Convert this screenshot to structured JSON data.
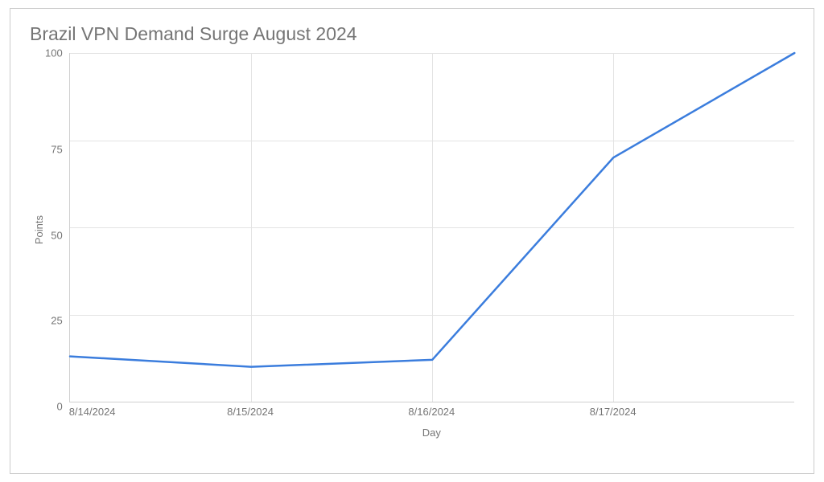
{
  "chart": {
    "type": "line",
    "title": "Brazil VPN Demand Surge August 2024",
    "title_fontsize": 23,
    "title_color": "#757575",
    "xlabel": "Day",
    "ylabel": "Points",
    "label_fontsize": 13,
    "label_color": "#757575",
    "ylim": [
      0,
      100
    ],
    "yticks": [
      0,
      25,
      50,
      75,
      100
    ],
    "xtick_labels": [
      "8/14/2024",
      "8/15/2024",
      "8/16/2024",
      "8/17/2024"
    ],
    "xtick_positions": [
      0,
      25,
      50,
      75
    ],
    "x_values": [
      0,
      25,
      50,
      75,
      100
    ],
    "y_values": [
      13,
      10,
      12,
      70,
      100
    ],
    "line_color": "#3b7ddd",
    "line_width": 2.5,
    "background_color": "#ffffff",
    "border_color": "#cccccc",
    "grid_color": "#e3e3e3",
    "axis_color": "#d0d0d0",
    "tick_font_color": "#757575"
  }
}
